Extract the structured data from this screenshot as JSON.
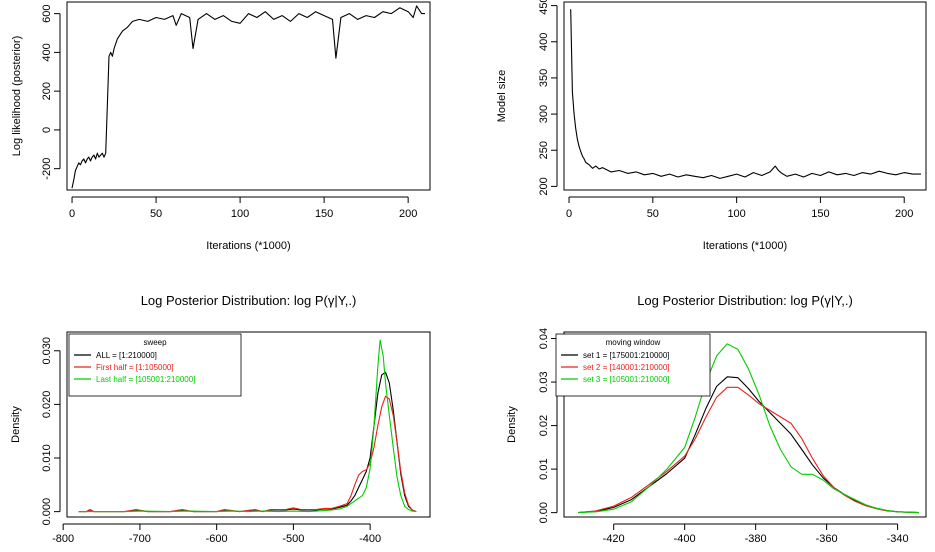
{
  "chart_data": [
    {
      "type": "line",
      "title": "",
      "xlabel": "Iterations (*1000)",
      "ylabel": "Log likelihood (posterior)",
      "xlim": [
        -3,
        213
      ],
      "ylim": [
        -310,
        660
      ],
      "xticks": [
        0,
        50,
        100,
        150,
        200
      ],
      "yticks": [
        -200,
        0,
        200,
        400,
        600
      ],
      "series": [
        {
          "color": "#000000",
          "x": [
            0,
            1,
            2,
            3,
            4,
            5,
            6,
            7,
            8,
            9,
            10,
            11,
            12,
            13,
            14,
            15,
            16,
            17,
            18,
            19,
            20,
            21,
            22,
            23,
            24,
            25,
            27,
            30,
            33,
            36,
            40,
            45,
            50,
            55,
            60,
            62,
            65,
            70,
            72,
            75,
            80,
            85,
            90,
            95,
            100,
            105,
            110,
            115,
            120,
            125,
            130,
            135,
            140,
            145,
            150,
            155,
            157,
            160,
            165,
            170,
            175,
            180,
            185,
            190,
            195,
            200,
            203,
            205,
            208,
            210
          ],
          "values": [
            -300,
            -260,
            -210,
            -190,
            -170,
            -180,
            -160,
            -150,
            -170,
            -150,
            -140,
            -160,
            -140,
            -130,
            -150,
            -120,
            -140,
            -130,
            -120,
            -140,
            -120,
            120,
            380,
            400,
            380,
            420,
            470,
            510,
            530,
            560,
            570,
            560,
            580,
            570,
            590,
            540,
            600,
            580,
            420,
            570,
            600,
            570,
            590,
            560,
            550,
            600,
            580,
            610,
            570,
            590,
            560,
            600,
            580,
            610,
            590,
            570,
            370,
            580,
            600,
            570,
            590,
            580,
            610,
            600,
            630,
            610,
            580,
            640,
            600,
            600
          ]
        }
      ]
    },
    {
      "type": "line",
      "title": "",
      "xlabel": "Iterations (*1000)",
      "ylabel": "Model size",
      "xlim": [
        -3,
        213
      ],
      "ylim": [
        195,
        455
      ],
      "xticks": [
        0,
        50,
        100,
        150,
        200
      ],
      "yticks": [
        200,
        250,
        300,
        350,
        400,
        450
      ],
      "series": [
        {
          "color": "#000000",
          "x": [
            1,
            2,
            3,
            4,
            5,
            6,
            7,
            8,
            9,
            10,
            12,
            14,
            16,
            18,
            20,
            25,
            30,
            35,
            40,
            45,
            50,
            55,
            60,
            65,
            70,
            75,
            80,
            85,
            90,
            95,
            100,
            105,
            110,
            115,
            120,
            123,
            125,
            127,
            130,
            135,
            140,
            145,
            150,
            155,
            160,
            165,
            170,
            175,
            180,
            185,
            190,
            195,
            200,
            205,
            210
          ],
          "values": [
            445,
            330,
            300,
            280,
            265,
            255,
            248,
            242,
            238,
            233,
            230,
            225,
            228,
            224,
            226,
            220,
            222,
            218,
            220,
            216,
            218,
            214,
            217,
            213,
            216,
            214,
            212,
            215,
            211,
            214,
            217,
            213,
            219,
            215,
            220,
            228,
            222,
            218,
            214,
            217,
            213,
            218,
            215,
            220,
            216,
            218,
            215,
            219,
            217,
            221,
            218,
            216,
            219,
            217,
            217
          ]
        }
      ]
    },
    {
      "type": "line",
      "title": "Log Posterior Distribution: log P(γ|Y,.)",
      "xlabel": "",
      "ylabel": "Density",
      "xlim": [
        -795,
        -322
      ],
      "ylim": [
        -0.001,
        0.0335
      ],
      "xticks": [
        -800,
        -700,
        -600,
        -500,
        -400
      ],
      "yticks": [
        0.0,
        0.01,
        0.02,
        0.03
      ],
      "ytick_labels": [
        "0.000",
        "0.010",
        "0.020",
        "0.030"
      ],
      "legend": {
        "title": "sweep",
        "position": "top-left",
        "entries": [
          "ALL = [1:210000]",
          "First half = [1:105000]",
          "Last half = [105001:210000]"
        ]
      },
      "series": [
        {
          "name": "ALL = [1:210000]",
          "color": "#000000",
          "x": [
            -780,
            -770,
            -765,
            -760,
            -720,
            -705,
            -690,
            -660,
            -645,
            -630,
            -600,
            -590,
            -570,
            -550,
            -540,
            -530,
            -510,
            -500,
            -490,
            -470,
            -460,
            -450,
            -440,
            -430,
            -425,
            -420,
            -415,
            -410,
            -405,
            -400,
            -395,
            -390,
            -385,
            -380,
            -375,
            -370,
            -365,
            -360,
            -355,
            -350,
            -345,
            -340
          ],
          "values": [
            0,
            0,
            0.0003,
            0,
            0,
            0.0003,
            0,
            0,
            0.0003,
            0,
            0,
            0.0003,
            0,
            0.0003,
            0,
            0.0003,
            0.0003,
            0.0005,
            0.0003,
            0.0003,
            0.0005,
            0.0005,
            0.0008,
            0.0012,
            0.002,
            0.003,
            0.0045,
            0.006,
            0.0075,
            0.01,
            0.016,
            0.022,
            0.0255,
            0.026,
            0.024,
            0.019,
            0.013,
            0.007,
            0.003,
            0.001,
            0.0003,
            0
          ]
        },
        {
          "name": "First half = [1:105000]",
          "color": "#e8211a",
          "x": [
            -780,
            -770,
            -765,
            -760,
            -720,
            -705,
            -690,
            -660,
            -645,
            -630,
            -600,
            -590,
            -570,
            -550,
            -540,
            -530,
            -510,
            -500,
            -490,
            -470,
            -460,
            -450,
            -440,
            -430,
            -425,
            -420,
            -415,
            -410,
            -405,
            -400,
            -395,
            -390,
            -385,
            -380,
            -375,
            -370,
            -365,
            -360,
            -355,
            -350,
            -345,
            -340
          ],
          "values": [
            0,
            0,
            0.0004,
            0,
            0,
            0.0004,
            0,
            0,
            0.0004,
            0,
            0,
            0.0004,
            0,
            0.0004,
            0,
            0.0004,
            0.0004,
            0.0007,
            0.0004,
            0.0004,
            0.0006,
            0.0006,
            0.001,
            0.0015,
            0.003,
            0.005,
            0.0068,
            0.0075,
            0.0078,
            0.009,
            0.012,
            0.016,
            0.0195,
            0.0215,
            0.021,
            0.018,
            0.013,
            0.0075,
            0.0035,
            0.0012,
            0.0003,
            0
          ]
        },
        {
          "name": "Last half = [105001:210000]",
          "color": "#00cc00",
          "x": [
            -780,
            -760,
            -720,
            -700,
            -660,
            -640,
            -600,
            -580,
            -560,
            -540,
            -520,
            -500,
            -480,
            -460,
            -450,
            -440,
            -430,
            -425,
            -420,
            -415,
            -410,
            -405,
            -400,
            -395,
            -390,
            -387,
            -383,
            -380,
            -375,
            -370,
            -365,
            -360,
            -355,
            -350,
            -345,
            -340
          ],
          "values": [
            0,
            0,
            0,
            0.0001,
            0,
            0.0001,
            0,
            0.0001,
            0,
            0.0001,
            0,
            0.0001,
            0,
            0.0002,
            0.0003,
            0.0005,
            0.001,
            0.0015,
            0.002,
            0.0025,
            0.003,
            0.0045,
            0.008,
            0.016,
            0.027,
            0.032,
            0.029,
            0.024,
            0.018,
            0.012,
            0.0065,
            0.003,
            0.001,
            0.0004,
            0.0001,
            0
          ]
        }
      ]
    },
    {
      "type": "line",
      "title": "Log Posterior Distribution: log P(γ|Y,.)",
      "xlabel": "",
      "ylabel": "Density",
      "xlim": [
        -434,
        -332
      ],
      "ylim": [
        -0.001,
        0.0415
      ],
      "xticks": [
        -420,
        -400,
        -380,
        -360,
        -340
      ],
      "yticks": [
        0.0,
        0.01,
        0.02,
        0.03,
        0.04
      ],
      "ytick_labels": [
        "0.00",
        "0.01",
        "0.02",
        "0.03",
        "0.04"
      ],
      "legend": {
        "title": "moving window",
        "position": "top-left",
        "entries": [
          "set 1 = [175001:210000]",
          "set 2 = [140001:210000]",
          "set 3 = [105001:210000]"
        ]
      },
      "series": [
        {
          "name": "set 1 = [175001:210000]",
          "color": "#000000",
          "x": [
            -430,
            -425,
            -420,
            -415,
            -410,
            -405,
            -400,
            -397,
            -394,
            -391,
            -388,
            -385,
            -382,
            -379,
            -376,
            -373,
            -370,
            -367,
            -364,
            -361,
            -358,
            -355,
            -352,
            -349,
            -346,
            -343,
            -340,
            -337,
            -334
          ],
          "values": [
            0,
            0.0003,
            0.0012,
            0.003,
            0.006,
            0.009,
            0.0125,
            0.018,
            0.024,
            0.029,
            0.0312,
            0.031,
            0.0285,
            0.0255,
            0.023,
            0.0205,
            0.018,
            0.0145,
            0.011,
            0.008,
            0.0058,
            0.0042,
            0.0028,
            0.0017,
            0.001,
            0.0005,
            0.0002,
            0.0001,
            0
          ]
        },
        {
          "name": "set 2 = [140001:210000]",
          "color": "#e8211a",
          "x": [
            -430,
            -425,
            -420,
            -415,
            -410,
            -405,
            -400,
            -397,
            -394,
            -391,
            -388,
            -385,
            -382,
            -379,
            -376,
            -373,
            -370,
            -367,
            -364,
            -361,
            -358,
            -355,
            -352,
            -349,
            -346,
            -343,
            -340,
            -337,
            -334
          ],
          "values": [
            0,
            0.0004,
            0.0015,
            0.0035,
            0.0065,
            0.0095,
            0.013,
            0.017,
            0.022,
            0.0265,
            0.0288,
            0.0288,
            0.027,
            0.025,
            0.0235,
            0.022,
            0.0205,
            0.017,
            0.0125,
            0.0085,
            0.0058,
            0.004,
            0.0026,
            0.0016,
            0.0009,
            0.0004,
            0.0002,
            0.0001,
            0
          ]
        },
        {
          "name": "set 3 = [105001:210000]",
          "color": "#00cc00",
          "x": [
            -430,
            -425,
            -420,
            -415,
            -410,
            -405,
            -400,
            -397,
            -394,
            -391,
            -388,
            -385,
            -382,
            -379,
            -376,
            -373,
            -370,
            -367,
            -364,
            -361,
            -358,
            -355,
            -352,
            -349,
            -346,
            -343,
            -340,
            -337,
            -334
          ],
          "values": [
            0,
            0.0002,
            0.0008,
            0.0025,
            0.006,
            0.01,
            0.015,
            0.022,
            0.03,
            0.036,
            0.0388,
            0.0375,
            0.033,
            0.027,
            0.02,
            0.0145,
            0.0105,
            0.0088,
            0.0088,
            0.0075,
            0.0055,
            0.0042,
            0.003,
            0.0018,
            0.001,
            0.0005,
            0.0002,
            0.0001,
            0
          ]
        }
      ]
    }
  ]
}
